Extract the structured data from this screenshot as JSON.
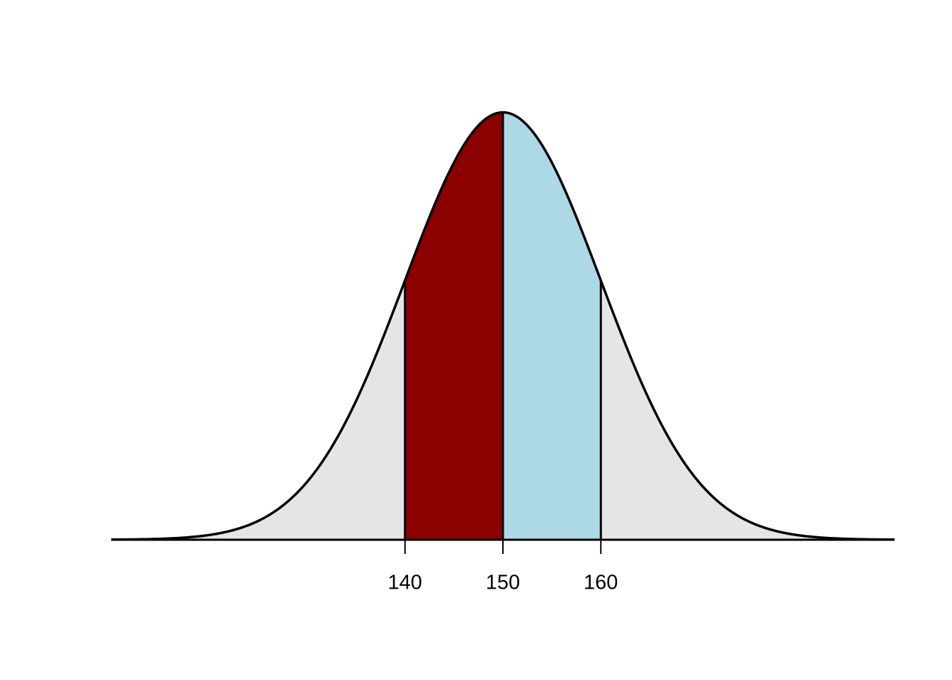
{
  "chart_data": {
    "type": "normal-density",
    "mean": 150,
    "sd": 10,
    "xlim": [
      110,
      190
    ],
    "ylim": [
      0,
      0.04
    ],
    "xticks": [
      140,
      150,
      160
    ],
    "fill": "#e5e5e5",
    "regions": [
      {
        "from": 140,
        "to": 150,
        "color": "#8b0000"
      },
      {
        "from": 150,
        "to": 160,
        "color": "#add8e6"
      }
    ]
  }
}
